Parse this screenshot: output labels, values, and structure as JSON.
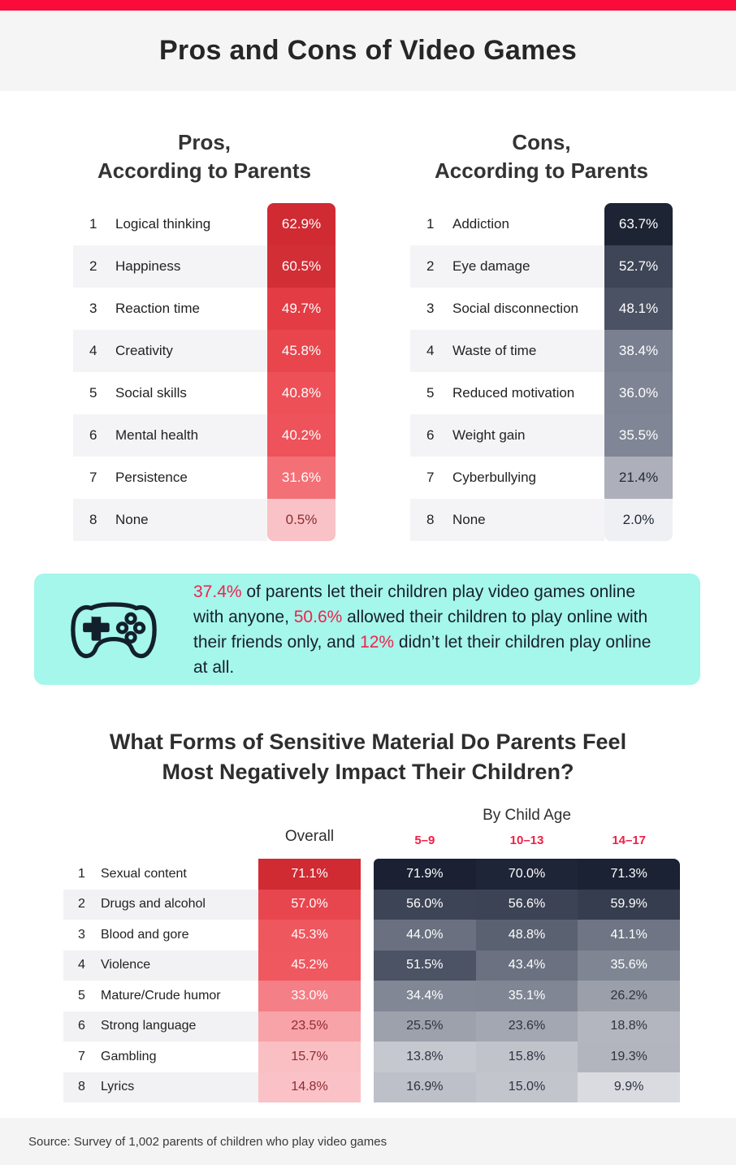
{
  "page": {
    "title": "Pros and Cons of Video Games"
  },
  "colors": {
    "top_bar": "#fb0b39",
    "highlight_red": "#f1224a",
    "age_label_red": "#ef2045",
    "callout_background": "#a5f6eb"
  },
  "pros_table": {
    "title_line1": "Pros,",
    "title_line2": "According to Parents",
    "rows": [
      {
        "rank": "1",
        "label": "Logical thinking",
        "value": "62.9%",
        "bg": "#d02a32",
        "fg": "#ffffff"
      },
      {
        "rank": "2",
        "label": "Happiness",
        "value": "60.5%",
        "bg": "#d22e36",
        "fg": "#ffffff"
      },
      {
        "rank": "3",
        "label": "Reaction time",
        "value": "49.7%",
        "bg": "#e43c44",
        "fg": "#ffffff"
      },
      {
        "rank": "4",
        "label": "Creativity",
        "value": "45.8%",
        "bg": "#e8454d",
        "fg": "#ffffff"
      },
      {
        "rank": "5",
        "label": "Social skills",
        "value": "40.8%",
        "bg": "#ee5058",
        "fg": "#ffffff"
      },
      {
        "rank": "6",
        "label": "Mental health",
        "value": "40.2%",
        "bg": "#ee525a",
        "fg": "#ffffff"
      },
      {
        "rank": "7",
        "label": "Persistence",
        "value": "31.6%",
        "bg": "#f37077",
        "fg": "#ffffff"
      },
      {
        "rank": "8",
        "label": "None",
        "value": "0.5%",
        "bg": "#f9c2c6",
        "fg": "#8c2b33"
      }
    ]
  },
  "cons_table": {
    "title_line1": "Cons,",
    "title_line2": "According to Parents",
    "rows": [
      {
        "rank": "1",
        "label": "Addiction",
        "value": "63.7%",
        "bg": "#1d2433",
        "fg": "#ffffff"
      },
      {
        "rank": "2",
        "label": "Eye damage",
        "value": "52.7%",
        "bg": "#3e4556",
        "fg": "#ffffff"
      },
      {
        "rank": "3",
        "label": "Social disconnection",
        "value": "48.1%",
        "bg": "#4b5263",
        "fg": "#ffffff"
      },
      {
        "rank": "4",
        "label": "Waste of time",
        "value": "38.4%",
        "bg": "#7a8090",
        "fg": "#ffffff"
      },
      {
        "rank": "5",
        "label": "Reduced motivation",
        "value": "36.0%",
        "bg": "#7e8493",
        "fg": "#ffffff"
      },
      {
        "rank": "6",
        "label": "Weight gain",
        "value": "35.5%",
        "bg": "#808695",
        "fg": "#ffffff"
      },
      {
        "rank": "7",
        "label": "Cyberbullying",
        "value": "21.4%",
        "bg": "#adb0ba",
        "fg": "#222a38"
      },
      {
        "rank": "8",
        "label": "None",
        "value": "2.0%",
        "bg": "#eef0f3",
        "fg": "#222a38"
      }
    ]
  },
  "callout": {
    "segments": [
      {
        "text": "37.4%",
        "highlight": true
      },
      {
        "text": " of parents let their children play video games online with anyone, ",
        "highlight": false
      },
      {
        "text": "50.6%",
        "highlight": true
      },
      {
        "text": " allowed their children to play online with their friends only, and ",
        "highlight": false
      },
      {
        "text": "12%",
        "highlight": true
      },
      {
        "text": " didn’t let their children play online at all.",
        "highlight": false
      }
    ]
  },
  "sensitive_section": {
    "title_line1": "What Forms of Sensitive Material Do Parents Feel",
    "title_line2": "Most Negatively Impact Their Children?",
    "overall_header": "Overall",
    "age_header": "By Child Age",
    "age_groups": [
      "5–9",
      "10–13",
      "14–17"
    ],
    "rows": [
      {
        "rank": "1",
        "label": "Sexual content",
        "overall": {
          "value": "71.1%",
          "bg": "#d02a32",
          "fg": "#ffffff"
        },
        "ages": [
          {
            "value": "71.9%",
            "bg": "#1b2133",
            "fg": "#ffffff"
          },
          {
            "value": "70.0%",
            "bg": "#1e2537",
            "fg": "#ffffff"
          },
          {
            "value": "71.3%",
            "bg": "#1b2234",
            "fg": "#ffffff"
          }
        ]
      },
      {
        "rank": "2",
        "label": "Drugs and alcohol",
        "overall": {
          "value": "57.0%",
          "bg": "#e8464e",
          "fg": "#ffffff"
        },
        "ages": [
          {
            "value": "56.0%",
            "bg": "#3d4455",
            "fg": "#ffffff"
          },
          {
            "value": "56.6%",
            "bg": "#3c4354",
            "fg": "#ffffff"
          },
          {
            "value": "59.9%",
            "bg": "#363d4f",
            "fg": "#ffffff"
          }
        ]
      },
      {
        "rank": "3",
        "label": "Blood and gore",
        "overall": {
          "value": "45.3%",
          "bg": "#ef575e",
          "fg": "#ffffff"
        },
        "ages": [
          {
            "value": "44.0%",
            "bg": "#6a707f",
            "fg": "#ffffff"
          },
          {
            "value": "48.8%",
            "bg": "#5a6170",
            "fg": "#ffffff"
          },
          {
            "value": "41.1%",
            "bg": "#6f7584",
            "fg": "#ffffff"
          }
        ]
      },
      {
        "rank": "4",
        "label": "Violence",
        "overall": {
          "value": "45.2%",
          "bg": "#ef585f",
          "fg": "#ffffff"
        },
        "ages": [
          {
            "value": "51.5%",
            "bg": "#4c5364",
            "fg": "#ffffff"
          },
          {
            "value": "43.4%",
            "bg": "#6b7180",
            "fg": "#ffffff"
          },
          {
            "value": "35.6%",
            "bg": "#7f8593",
            "fg": "#ffffff"
          }
        ]
      },
      {
        "rank": "5",
        "label": "Mature/Crude humor",
        "overall": {
          "value": "33.0%",
          "bg": "#f47f86",
          "fg": "#ffffff"
        },
        "ages": [
          {
            "value": "34.4%",
            "bg": "#818795",
            "fg": "#ffffff"
          },
          {
            "value": "35.1%",
            "bg": "#808694",
            "fg": "#ffffff"
          },
          {
            "value": "26.2%",
            "bg": "#9b9fa9",
            "fg": "#2c3340"
          }
        ]
      },
      {
        "rank": "6",
        "label": "Strong language",
        "overall": {
          "value": "23.5%",
          "bg": "#f7a3a8",
          "fg": "#8c2b33"
        },
        "ages": [
          {
            "value": "25.5%",
            "bg": "#9da1ac",
            "fg": "#2c3340"
          },
          {
            "value": "23.6%",
            "bg": "#a3a7b1",
            "fg": "#2c3340"
          },
          {
            "value": "18.8%",
            "bg": "#b3b6bf",
            "fg": "#2c3340"
          }
        ]
      },
      {
        "rank": "7",
        "label": "Gambling",
        "overall": {
          "value": "15.7%",
          "bg": "#fabfc3",
          "fg": "#8c2b33"
        },
        "ages": [
          {
            "value": "13.8%",
            "bg": "#c6c8cf",
            "fg": "#2c3340"
          },
          {
            "value": "15.8%",
            "bg": "#c0c3ca",
            "fg": "#2c3340"
          },
          {
            "value": "19.3%",
            "bg": "#b2b5be",
            "fg": "#2c3340"
          }
        ]
      },
      {
        "rank": "8",
        "label": "Lyrics",
        "overall": {
          "value": "14.8%",
          "bg": "#fac2c6",
          "fg": "#8c2b33"
        },
        "ages": [
          {
            "value": "16.9%",
            "bg": "#bdc0c8",
            "fg": "#2c3340"
          },
          {
            "value": "15.0%",
            "bg": "#c3c5cd",
            "fg": "#2c3340"
          },
          {
            "value": "9.9%",
            "bg": "#d9dbe0",
            "fg": "#2c3340"
          }
        ]
      }
    ]
  },
  "footer": {
    "source": "Source: Survey of 1,002 parents of children who play video games"
  },
  "chart_data": [
    {
      "type": "bar",
      "title": "Pros, According to Parents",
      "categories": [
        "Logical thinking",
        "Happiness",
        "Reaction time",
        "Creativity",
        "Social skills",
        "Mental health",
        "Persistence",
        "None"
      ],
      "values": [
        62.9,
        60.5,
        49.7,
        45.8,
        40.8,
        40.2,
        31.6,
        0.5
      ],
      "unit": "%"
    },
    {
      "type": "bar",
      "title": "Cons, According to Parents",
      "categories": [
        "Addiction",
        "Eye damage",
        "Social disconnection",
        "Waste of time",
        "Reduced motivation",
        "Weight gain",
        "Cyberbullying",
        "None"
      ],
      "values": [
        63.7,
        52.7,
        48.1,
        38.4,
        36.0,
        35.5,
        21.4,
        2.0
      ],
      "unit": "%"
    },
    {
      "type": "heatmap",
      "title": "What Forms of Sensitive Material Do Parents Feel Most Negatively Impact Their Children?",
      "categories": [
        "Sexual content",
        "Drugs and alcohol",
        "Blood and gore",
        "Violence",
        "Mature/Crude humor",
        "Strong language",
        "Gambling",
        "Lyrics"
      ],
      "series": [
        {
          "name": "Overall",
          "values": [
            71.1,
            57.0,
            45.3,
            45.2,
            33.0,
            23.5,
            15.7,
            14.8
          ]
        },
        {
          "name": "5–9",
          "values": [
            71.9,
            56.0,
            44.0,
            51.5,
            34.4,
            25.5,
            13.8,
            16.9
          ]
        },
        {
          "name": "10–13",
          "values": [
            70.0,
            56.6,
            48.8,
            43.4,
            35.1,
            23.6,
            15.8,
            15.0
          ]
        },
        {
          "name": "14–17",
          "values": [
            71.3,
            59.9,
            41.1,
            35.6,
            26.2,
            18.8,
            19.3,
            9.9
          ]
        }
      ],
      "unit": "%"
    },
    {
      "type": "pie",
      "title": "Online play rules set by parents",
      "categories": [
        "Play online with anyone",
        "Play online with friends only",
        "No online play at all"
      ],
      "values": [
        37.4,
        50.6,
        12.0
      ],
      "unit": "%"
    }
  ]
}
